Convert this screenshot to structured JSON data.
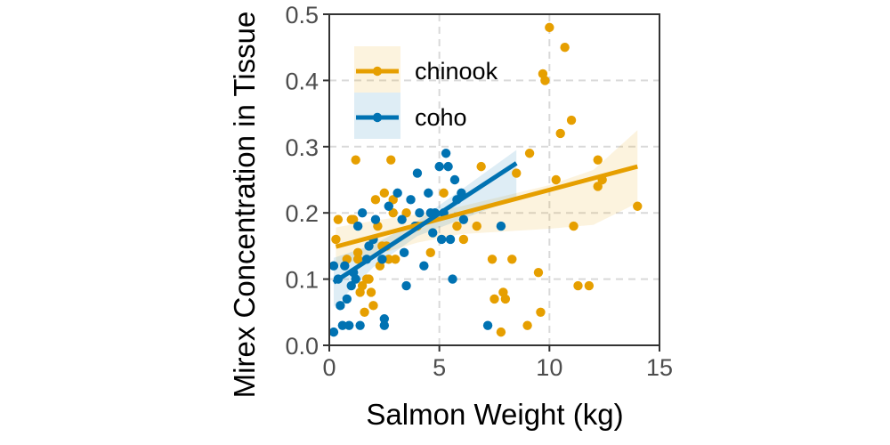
{
  "chart_data": {
    "type": "scatter",
    "title": "",
    "xlabel": "Salmon Weight (kg)",
    "ylabel": "Mirex Concentration in Tissue",
    "xlim": [
      0,
      15
    ],
    "ylim": [
      0,
      0.5
    ],
    "xticks": [
      0,
      5,
      10,
      15
    ],
    "yticks": [
      0.0,
      0.1,
      0.2,
      0.3,
      0.4,
      0.5
    ],
    "xtick_labels": [
      "0",
      "5",
      "10",
      "15"
    ],
    "ytick_labels": [
      "0.0",
      "0.1",
      "0.2",
      "0.3",
      "0.4",
      "0.5"
    ],
    "grid": "dashed, major gridlines",
    "legend_position": "top-left",
    "series": [
      {
        "name": "chinook",
        "color": "#E69F00",
        "points": [
          [
            0.3,
            0.16
          ],
          [
            0.4,
            0.19
          ],
          [
            0.8,
            0.13
          ],
          [
            1.0,
            0.19
          ],
          [
            1.1,
            0.19
          ],
          [
            1.2,
            0.28
          ],
          [
            1.3,
            0.14
          ],
          [
            1.3,
            0.13
          ],
          [
            1.4,
            0.08
          ],
          [
            1.5,
            0.09
          ],
          [
            1.6,
            0.05
          ],
          [
            1.7,
            0.1
          ],
          [
            1.8,
            0.1
          ],
          [
            1.9,
            0.08
          ],
          [
            2.0,
            0.06
          ],
          [
            2.1,
            0.22
          ],
          [
            2.2,
            0.18
          ],
          [
            2.3,
            0.12
          ],
          [
            2.4,
            0.15
          ],
          [
            2.5,
            0.23
          ],
          [
            2.6,
            0.15
          ],
          [
            2.7,
            0.13
          ],
          [
            2.8,
            0.28
          ],
          [
            2.9,
            0.2
          ],
          [
            2.9,
            0.22
          ],
          [
            3.0,
            0.13
          ],
          [
            3.5,
            0.2
          ],
          [
            4.0,
            0.18
          ],
          [
            4.6,
            0.14
          ],
          [
            5.2,
            0.23
          ],
          [
            5.8,
            0.18
          ],
          [
            6.1,
            0.16
          ],
          [
            6.7,
            0.18
          ],
          [
            6.9,
            0.27
          ],
          [
            7.4,
            0.13
          ],
          [
            7.5,
            0.07
          ],
          [
            7.8,
            0.02
          ],
          [
            7.9,
            0.08
          ],
          [
            8.0,
            0.07
          ],
          [
            8.3,
            0.13
          ],
          [
            8.5,
            0.26
          ],
          [
            9.0,
            0.03
          ],
          [
            9.1,
            0.29
          ],
          [
            9.5,
            0.11
          ],
          [
            9.6,
            0.05
          ],
          [
            9.7,
            0.41
          ],
          [
            9.8,
            0.4
          ],
          [
            10.0,
            0.48
          ],
          [
            10.3,
            0.25
          ],
          [
            10.5,
            0.32
          ],
          [
            10.7,
            0.45
          ],
          [
            11.0,
            0.34
          ],
          [
            11.1,
            0.18
          ],
          [
            11.3,
            0.09
          ],
          [
            11.8,
            0.09
          ],
          [
            12.2,
            0.28
          ],
          [
            12.2,
            0.24
          ],
          [
            12.4,
            0.25
          ],
          [
            14.0,
            0.21
          ]
        ],
        "fit": [
          [
            0.3,
            0.149
          ],
          [
            14.0,
            0.27
          ]
        ],
        "ci": {
          "x": [
            0.3,
            2,
            4,
            6,
            8,
            10,
            12,
            14
          ],
          "lower": [
            0.12,
            0.135,
            0.155,
            0.168,
            0.172,
            0.176,
            0.182,
            0.215
          ],
          "upper": [
            0.178,
            0.188,
            0.198,
            0.21,
            0.226,
            0.242,
            0.265,
            0.325
          ]
        }
      },
      {
        "name": "coho",
        "color": "#0072B2",
        "points": [
          [
            0.2,
            0.02
          ],
          [
            0.2,
            0.12
          ],
          [
            0.4,
            0.1
          ],
          [
            0.5,
            0.06
          ],
          [
            0.6,
            0.03
          ],
          [
            0.7,
            0.12
          ],
          [
            0.8,
            0.07
          ],
          [
            0.9,
            0.03
          ],
          [
            1.0,
            0.09
          ],
          [
            1.1,
            0.11
          ],
          [
            1.2,
            0.1
          ],
          [
            1.3,
            0.18
          ],
          [
            1.4,
            0.03
          ],
          [
            1.5,
            0.2
          ],
          [
            1.7,
            0.13
          ],
          [
            1.8,
            0.15
          ],
          [
            2.0,
            0.16
          ],
          [
            2.1,
            0.19
          ],
          [
            2.4,
            0.13
          ],
          [
            2.5,
            0.04
          ],
          [
            2.5,
            0.03
          ],
          [
            2.7,
            0.21
          ],
          [
            3.1,
            0.23
          ],
          [
            3.3,
            0.19
          ],
          [
            3.4,
            0.14
          ],
          [
            3.5,
            0.09
          ],
          [
            3.7,
            0.22
          ],
          [
            3.9,
            0.18
          ],
          [
            4.0,
            0.26
          ],
          [
            4.1,
            0.2
          ],
          [
            4.3,
            0.12
          ],
          [
            4.5,
            0.23
          ],
          [
            4.6,
            0.2
          ],
          [
            4.7,
            0.17
          ],
          [
            4.8,
            0.2
          ],
          [
            5.0,
            0.27
          ],
          [
            5.1,
            0.16
          ],
          [
            5.2,
            0.2
          ],
          [
            5.3,
            0.29
          ],
          [
            5.4,
            0.27
          ],
          [
            5.5,
            0.16
          ],
          [
            5.6,
            0.1
          ],
          [
            5.7,
            0.25
          ],
          [
            5.8,
            0.22
          ],
          [
            6.0,
            0.23
          ],
          [
            6.1,
            0.19
          ],
          [
            7.2,
            0.03
          ],
          [
            7.8,
            0.18
          ]
        ],
        "fit": [
          [
            0.2,
            0.095
          ],
          [
            8.5,
            0.275
          ]
        ],
        "ci": {
          "x": [
            0.2,
            2,
            4,
            6,
            8.5
          ],
          "lower": [
            0.058,
            0.118,
            0.165,
            0.19,
            0.222
          ],
          "upper": [
            0.132,
            0.152,
            0.188,
            0.235,
            0.295
          ]
        }
      }
    ],
    "legend": [
      {
        "label": "chinook",
        "color": "#E69F00"
      },
      {
        "label": "coho",
        "color": "#0072B2"
      }
    ]
  }
}
